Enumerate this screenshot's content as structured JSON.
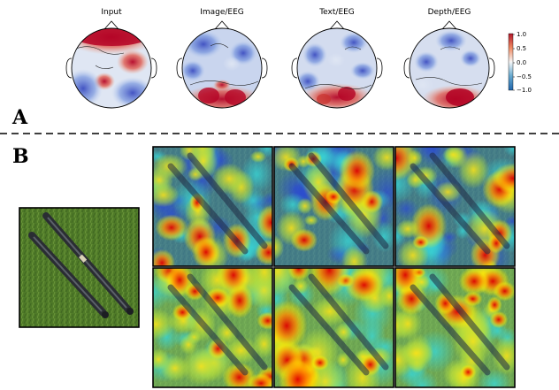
{
  "panel_a": {
    "label": "A",
    "maps": [
      {
        "title": "Input"
      },
      {
        "title": "Image/EEG"
      },
      {
        "title": "Text/EEG"
      },
      {
        "title": "Depth/EEG"
      }
    ],
    "colorbar": {
      "ticks": [
        "1.0",
        "0.5",
        "0.0",
        "−0.5",
        "−1.0"
      ],
      "max_color": "#b2182b",
      "mid_color": "#f7f7f7",
      "min_color": "#2166ac"
    }
  },
  "panel_b": {
    "label": "B",
    "heatmap_grid": {
      "rows": 2,
      "cols": 3
    }
  }
}
